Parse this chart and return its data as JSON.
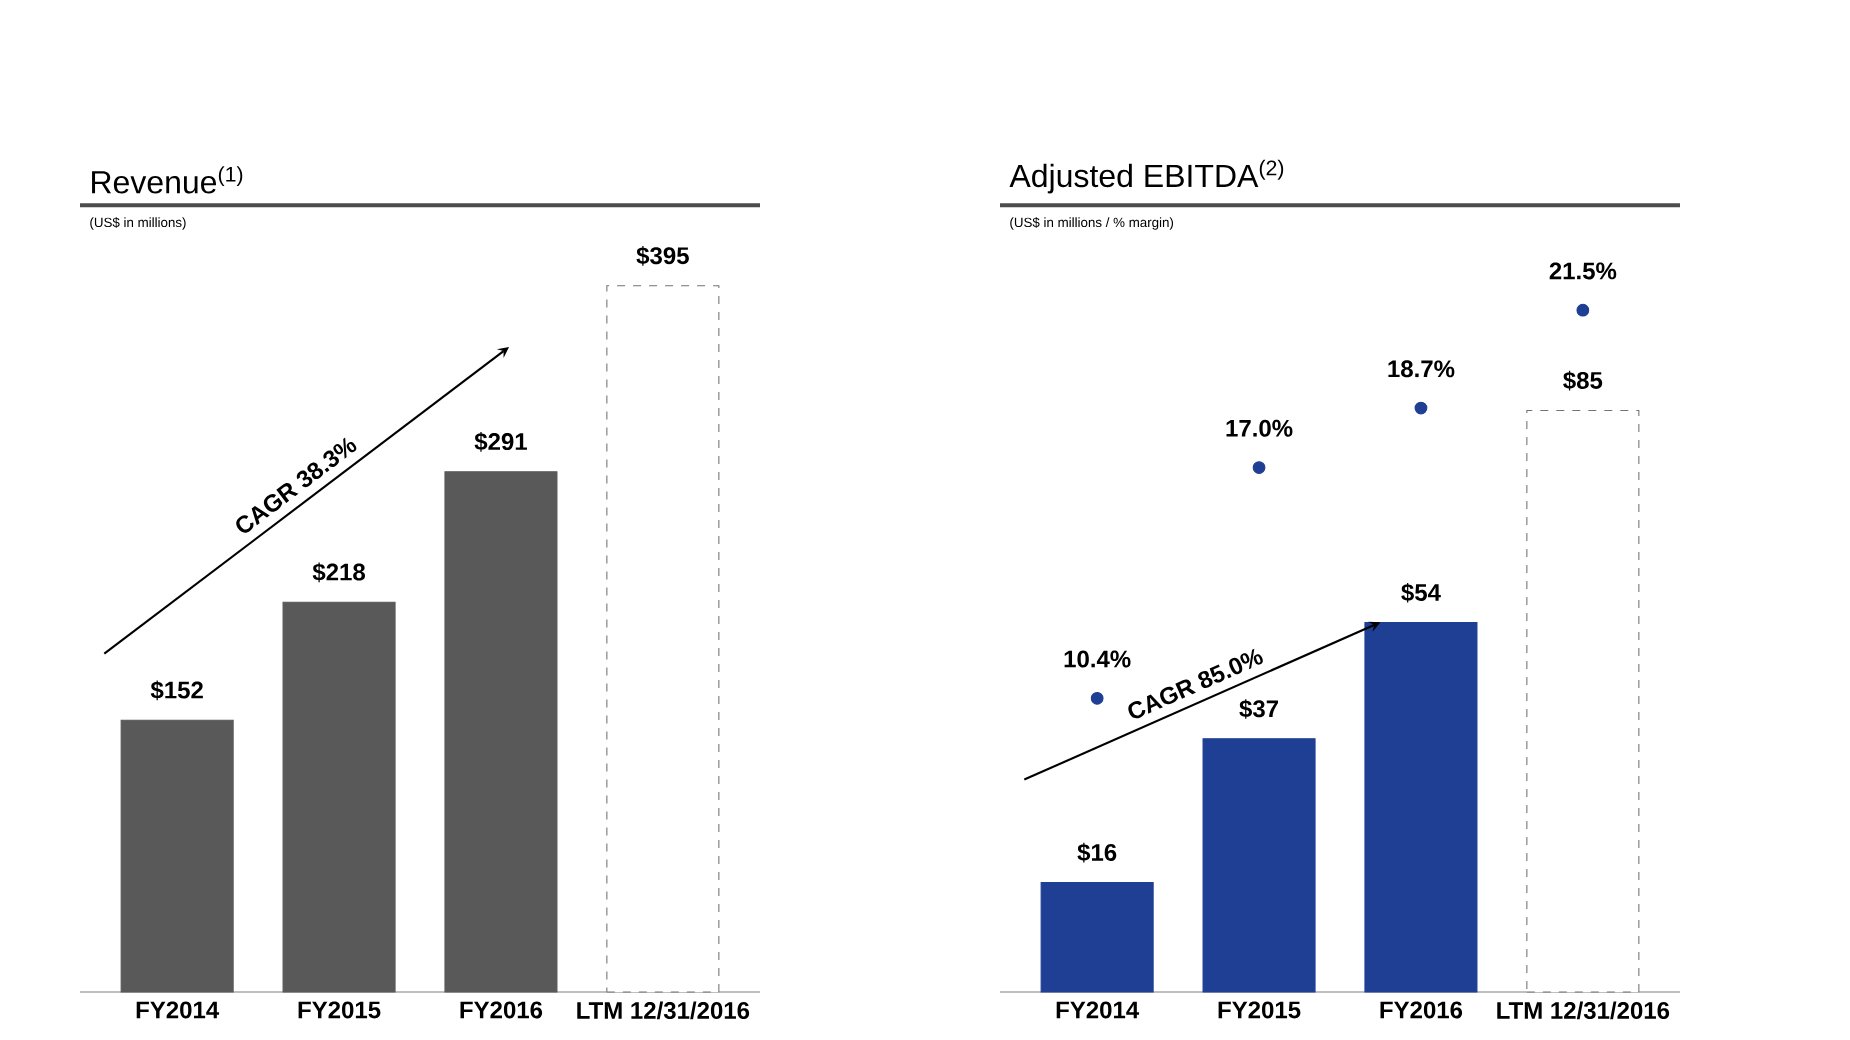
{
  "chart_data": [
    {
      "type": "bar",
      "title": "Revenue$^{(1)}$",
      "subtitle": "(US$ in millions)",
      "categories": [
        "FY2014",
        "FY2015",
        "FY2016",
        "LTM 12/31/2016"
      ],
      "ylim": [
        0,
        440
      ],
      "tick_labels": "x",
      "annotations": [
        "CAGR 38.3%"
      ],
      "series": [
        {
          "color": "#595959",
          "values": [
            152,
            218,
            291,
            null
          ],
          "value_labels": [
            "$152",
            "$218",
            "$291",
            null
          ]
        },
        {
          "color": "#ffffff",
          "line_style": "dashed",
          "values": [
            null,
            null,
            null,
            395
          ],
          "value_labels": [
            null,
            null,
            null,
            "$395"
          ]
        }
      ]
    },
    {
      "type": "bar",
      "title": "Adjusted EBITDA$^{(2)}$",
      "subtitle": "(US$ in millions / % margin)",
      "categories": [
        "FY2014",
        "FY2015",
        "FY2016",
        "LTM 12/31/2016"
      ],
      "ylim": [
        0,
        115
      ],
      "y2lim": [
        2,
        24.5
      ],
      "tick_labels": "x",
      "marker": "circle",
      "annotations": [
        "CAGR 85.0%"
      ],
      "series": [
        {
          "color": "#1f3f94",
          "values": [
            16,
            37,
            54,
            null
          ],
          "value_labels": [
            "$16",
            "$37",
            "$54",
            null
          ]
        },
        {
          "color": "#ffffff",
          "line_style": "dashed",
          "values": [
            null,
            null,
            null,
            85
          ],
          "value_labels": [
            null,
            null,
            null,
            "$85"
          ]
        },
        {
          "type": "scatter",
          "axis": "y2",
          "color": "#1f3f94",
          "values": [
            10.4,
            17.0,
            18.7,
            21.5
          ],
          "value_labels": [
            "10.4%",
            "17.0%",
            "18.7%",
            "21.5%"
          ]
        }
      ]
    }
  ]
}
